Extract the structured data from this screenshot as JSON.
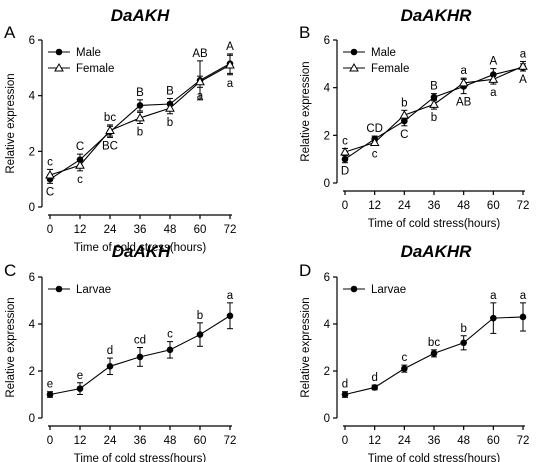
{
  "chart_data": [
    {
      "type": "line",
      "panel": "A",
      "title": "DaAKH",
      "xlabel": "Time of cold stress(hours)",
      "ylabel": "Relative expression",
      "x": [
        0,
        12,
        24,
        36,
        48,
        60,
        72
      ],
      "xlim": [
        0,
        72
      ],
      "ylim": [
        0,
        6
      ],
      "yticks": [
        0,
        2,
        4,
        6
      ],
      "grid": false,
      "legend": "top-left",
      "series": [
        {
          "name": "Male",
          "marker": "filled-circle",
          "values": [
            1.0,
            1.7,
            2.7,
            3.65,
            3.7,
            4.55,
            5.15
          ],
          "errors": [
            0.15,
            0.2,
            0.2,
            0.2,
            0.2,
            0.7,
            0.35
          ],
          "labels": [
            "C",
            "C",
            "BC",
            "B",
            "B",
            "AB",
            "A"
          ]
        },
        {
          "name": "Female",
          "marker": "open-triangle",
          "values": [
            1.15,
            1.5,
            2.75,
            3.2,
            3.55,
            4.5,
            5.1
          ],
          "errors": [
            0.2,
            0.2,
            0.2,
            0.2,
            0.2,
            0.2,
            0.35
          ],
          "labels": [
            "c",
            "c",
            "bc",
            "b",
            "b",
            "a",
            "a"
          ]
        }
      ]
    },
    {
      "type": "line",
      "panel": "B",
      "title": "DaAKHR",
      "xlabel": "Time of cold stress(hours)",
      "ylabel": "Relative expression",
      "x": [
        0,
        12,
        24,
        36,
        48,
        60,
        72
      ],
      "xlim": [
        0,
        72
      ],
      "ylim": [
        0,
        6
      ],
      "yticks": [
        0,
        2,
        4,
        6
      ],
      "grid": false,
      "legend": "top-left",
      "series": [
        {
          "name": "Male",
          "marker": "filled-circle",
          "values": [
            1.0,
            1.85,
            2.6,
            3.6,
            4.05,
            4.55,
            4.85
          ],
          "errors": [
            0.15,
            0.12,
            0.2,
            0.15,
            0.3,
            0.25,
            0.15
          ],
          "labels": [
            "D",
            "CD",
            "C",
            "B",
            "AB",
            "A",
            "A"
          ]
        },
        {
          "name": "Female",
          "marker": "open-triangle",
          "values": [
            1.3,
            1.7,
            2.85,
            3.3,
            4.2,
            4.35,
            4.9
          ],
          "errors": [
            0.15,
            0.12,
            0.2,
            0.2,
            0.2,
            0.2,
            0.2
          ],
          "labels": [
            "c",
            "c",
            "b",
            "b",
            "a",
            "a",
            "a"
          ]
        }
      ]
    },
    {
      "type": "line",
      "panel": "C",
      "title": "DaAKH",
      "xlabel": "Time of cold stress(hours)",
      "ylabel": "Relative expression",
      "x": [
        0,
        12,
        24,
        36,
        48,
        60,
        72
      ],
      "xlim": [
        0,
        72
      ],
      "ylim": [
        0,
        6
      ],
      "yticks": [
        0,
        2,
        4,
        6
      ],
      "grid": false,
      "legend": "top-left",
      "series": [
        {
          "name": "Larvae",
          "marker": "filled-circle",
          "values": [
            1.0,
            1.25,
            2.2,
            2.6,
            2.9,
            3.55,
            4.35
          ],
          "errors": [
            0.12,
            0.25,
            0.35,
            0.4,
            0.35,
            0.5,
            0.55
          ],
          "labels": [
            "e",
            "e",
            "d",
            "cd",
            "c",
            "b",
            "a"
          ]
        }
      ]
    },
    {
      "type": "line",
      "panel": "D",
      "title": "DaAKHR",
      "xlabel": "Time of cold stress(hours)",
      "ylabel": "Relative expression",
      "x": [
        0,
        12,
        24,
        36,
        48,
        60,
        72
      ],
      "xlim": [
        0,
        72
      ],
      "ylim": [
        0,
        6
      ],
      "yticks": [
        0,
        2,
        4,
        6
      ],
      "grid": false,
      "legend": "top-left",
      "series": [
        {
          "name": "Larvae",
          "marker": "filled-circle",
          "values": [
            1.0,
            1.3,
            2.1,
            2.75,
            3.2,
            4.25,
            4.3
          ],
          "errors": [
            0.12,
            0.1,
            0.15,
            0.15,
            0.3,
            0.65,
            0.6
          ],
          "labels": [
            "d",
            "d",
            "c",
            "bc",
            "b",
            "a",
            "a"
          ]
        }
      ]
    }
  ]
}
